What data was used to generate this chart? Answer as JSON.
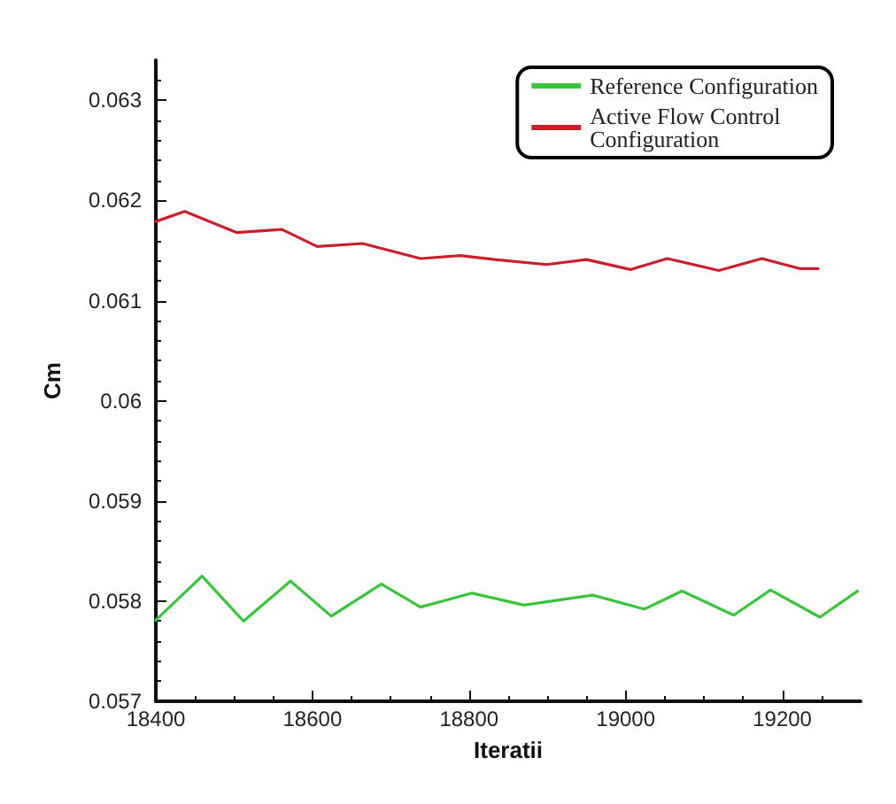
{
  "chart_data": {
    "type": "line",
    "xlabel": "Iteratii",
    "ylabel": "Cm",
    "xlim": [
      18400,
      19300
    ],
    "xticks": [
      18400,
      18600,
      18800,
      19000,
      19200
    ],
    "ylim": [
      0.057,
      0.0634
    ],
    "yticks": [
      0.057,
      0.058,
      0.059,
      0.06,
      0.061,
      0.062,
      0.063
    ],
    "grid": false,
    "legend": "top right",
    "marker": "none",
    "line_style": "solid",
    "series": [
      {
        "name": "Reference Configuration",
        "color": "#3cc43c",
        "x": [
          18400,
          18459,
          18512,
          18572,
          18624,
          18688,
          18738,
          18804,
          18870,
          18958,
          19024,
          19072,
          19138,
          19185,
          19248,
          19296
        ],
        "values": [
          0.05781,
          0.05825,
          0.0578,
          0.0582,
          0.05785,
          0.05817,
          0.05794,
          0.05808,
          0.05796,
          0.05806,
          0.05792,
          0.0581,
          0.05786,
          0.05811,
          0.05784,
          0.0581
        ]
      },
      {
        "name": "Active Flow Control Configuration",
        "color": "#c8202a",
        "x": [
          18400,
          18437,
          18503,
          18561,
          18606,
          18664,
          18738,
          18789,
          18833,
          18899,
          18950,
          19006,
          19053,
          19119,
          19174,
          19222,
          19246
        ],
        "values": [
          0.06179,
          0.06189,
          0.06168,
          0.06171,
          0.06154,
          0.06157,
          0.06142,
          0.06145,
          0.06141,
          0.06136,
          0.06141,
          0.06131,
          0.06142,
          0.0613,
          0.06142,
          0.06132,
          0.06132
        ]
      }
    ]
  }
}
